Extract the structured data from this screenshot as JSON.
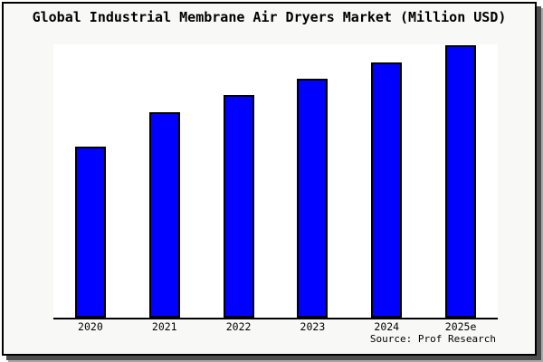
{
  "page": {
    "background": "#ffffff",
    "panel_bg": "#f8f8f7",
    "border_color": "#000000",
    "shadow_dark": "#4e4e4e",
    "shadow_light": "#a9a9a9"
  },
  "chart_data": {
    "type": "bar",
    "title": "Global Industrial Membrane Air Dryers Market (Million USD)",
    "categories": [
      "2020",
      "2021",
      "2022",
      "2023",
      "2024",
      "2025e"
    ],
    "values": [
      189,
      227,
      246,
      264,
      282,
      301
    ],
    "value_note": "no y-axis or data labels shown; values are relative bar heights estimated from pixels",
    "ylim": [
      0,
      302
    ],
    "xlabel": "",
    "ylabel": "",
    "grid": false,
    "legend": false,
    "bar_color": "#0000ff",
    "bar_border_color": "#000000",
    "source": "Source: Prof Research"
  }
}
